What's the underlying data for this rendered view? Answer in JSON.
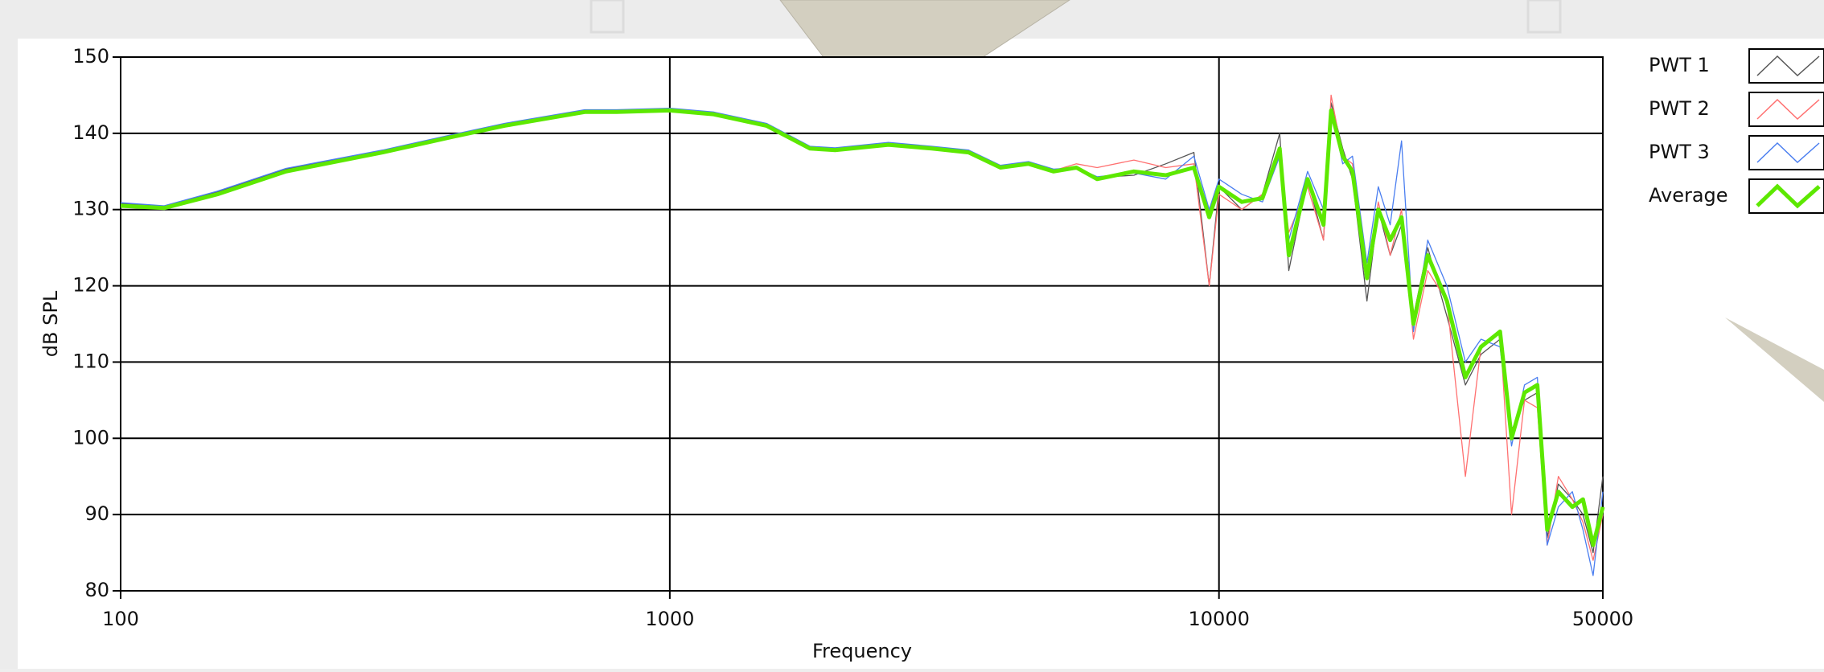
{
  "chart_data": {
    "type": "line",
    "x_label": "Frequency",
    "y_label": "dB SPL",
    "xlim": [
      100,
      50000
    ],
    "ylim": [
      80,
      150
    ],
    "xticks": [
      100,
      1000,
      10000,
      50000
    ],
    "yticks": [
      80,
      90,
      100,
      110,
      120,
      130,
      140,
      150
    ],
    "x_scale": "log",
    "grid": true,
    "legend": "right",
    "x": [
      100,
      120,
      150,
      200,
      300,
      400,
      500,
      700,
      800,
      1000,
      1200,
      1500,
      1800,
      2000,
      2500,
      3000,
      3500,
      4000,
      4500,
      5000,
      5500,
      6000,
      7000,
      8000,
      9000,
      9600,
      10000,
      11000,
      12000,
      12900,
      13400,
      14500,
      15500,
      16000,
      16800,
      17500,
      18600,
      19500,
      20500,
      21500,
      22600,
      24000,
      26000,
      28100,
      30000,
      32500,
      34100,
      36000,
      38000,
      39600,
      41500,
      44000,
      46000,
      48000,
      50000
    ],
    "series": [
      {
        "name": "PWT 1",
        "color": "#555555",
        "values": [
          130.8,
          130.4,
          132.3,
          135.3,
          137.7,
          139.7,
          141.2,
          143,
          143,
          143.2,
          142.7,
          141.2,
          138.2,
          138,
          138.7,
          138.2,
          137.7,
          135.7,
          136.2,
          135.2,
          135.3,
          134.2,
          134.5,
          136,
          137.5,
          120,
          133,
          130,
          132,
          140,
          122,
          134,
          126,
          144,
          138,
          134,
          118,
          130,
          124,
          128,
          116,
          125,
          116,
          107,
          111,
          113,
          101,
          105,
          106,
          87,
          94,
          92,
          90,
          85,
          95
        ]
      },
      {
        "name": "PWT 2",
        "color": "#ff7070",
        "values": [
          130.6,
          130.3,
          132.1,
          135.1,
          137.6,
          139.6,
          141.1,
          142.9,
          142.9,
          143.1,
          142.6,
          141.1,
          138.1,
          137.9,
          138.6,
          138.1,
          137.6,
          135.6,
          136.1,
          135.1,
          136,
          135.5,
          136.5,
          135.5,
          136,
          120,
          132,
          130,
          132,
          137,
          127,
          133,
          126,
          145,
          137,
          136,
          121,
          131,
          124,
          130,
          113,
          122,
          118,
          95,
          112,
          114,
          90,
          105,
          104,
          86,
          95,
          92,
          89,
          84,
          90
        ]
      },
      {
        "name": "PWT 3",
        "color": "#4a7ef0",
        "values": [
          130.9,
          130.5,
          132.4,
          135.4,
          137.8,
          139.8,
          141.3,
          143.1,
          143.1,
          143.3,
          142.8,
          141.3,
          138.3,
          138.1,
          138.8,
          138.3,
          137.8,
          135.8,
          136.3,
          135.3,
          135.5,
          134.3,
          134.8,
          134,
          137,
          130,
          134,
          132,
          131,
          137,
          126,
          135,
          130,
          143,
          136,
          137,
          123,
          133,
          128,
          139,
          114,
          126,
          120,
          110,
          113,
          112,
          99,
          107,
          108,
          86,
          91,
          93,
          88,
          82,
          93
        ]
      },
      {
        "name": "Average",
        "color": "#5de800",
        "values": [
          130.5,
          130.2,
          132,
          135,
          137.5,
          139.5,
          141,
          142.8,
          142.8,
          143,
          142.5,
          141,
          138,
          137.8,
          138.5,
          138,
          137.5,
          135.5,
          136,
          135,
          135.5,
          134,
          135,
          134.5,
          135.5,
          129,
          133,
          131,
          131.5,
          138,
          124,
          134,
          128,
          143,
          137,
          135,
          121,
          130,
          126,
          129,
          115,
          124,
          118,
          108,
          112,
          114,
          100,
          106,
          107,
          88,
          93,
          91,
          92,
          86,
          91
        ]
      }
    ]
  }
}
